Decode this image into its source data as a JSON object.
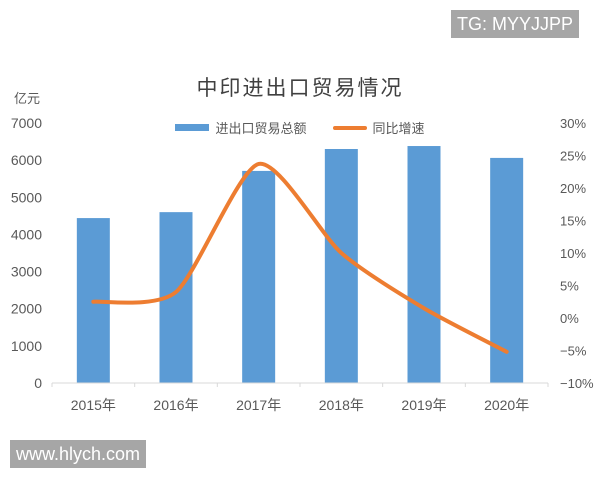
{
  "watermarks": {
    "top": "TG: MYYJJPP",
    "bottom": "www.hlych.com"
  },
  "chart_data": {
    "type": "bar+line",
    "title": "中印进出口贸易情况",
    "ylabel": "亿元",
    "y2label": "",
    "xlabel": "",
    "categories": [
      "2015年",
      "2016年",
      "2017年",
      "2018年",
      "2019年",
      "2020年"
    ],
    "series": [
      {
        "name": "进出口贸易总额",
        "type": "bar",
        "axis": "left",
        "color": "#5b9bd5",
        "values": [
          4440,
          4600,
          5710,
          6300,
          6380,
          6060
        ]
      },
      {
        "name": "同比增速",
        "type": "line",
        "axis": "right",
        "color": "#ed7d31",
        "unit": "%",
        "values": [
          2.5,
          4.0,
          23.7,
          10.0,
          1.5,
          -5.2
        ]
      }
    ],
    "ylim": [
      0,
      7000
    ],
    "yticks": [
      "0",
      "1000",
      "2000",
      "3000",
      "4000",
      "5000",
      "6000",
      "7000"
    ],
    "y2lim": [
      -10,
      30
    ],
    "y2ticks": [
      "−10%",
      "−5%",
      "0%",
      "5%",
      "10%",
      "15%",
      "20%",
      "25%",
      "30%"
    ],
    "grid": false,
    "legend_position": "top"
  }
}
